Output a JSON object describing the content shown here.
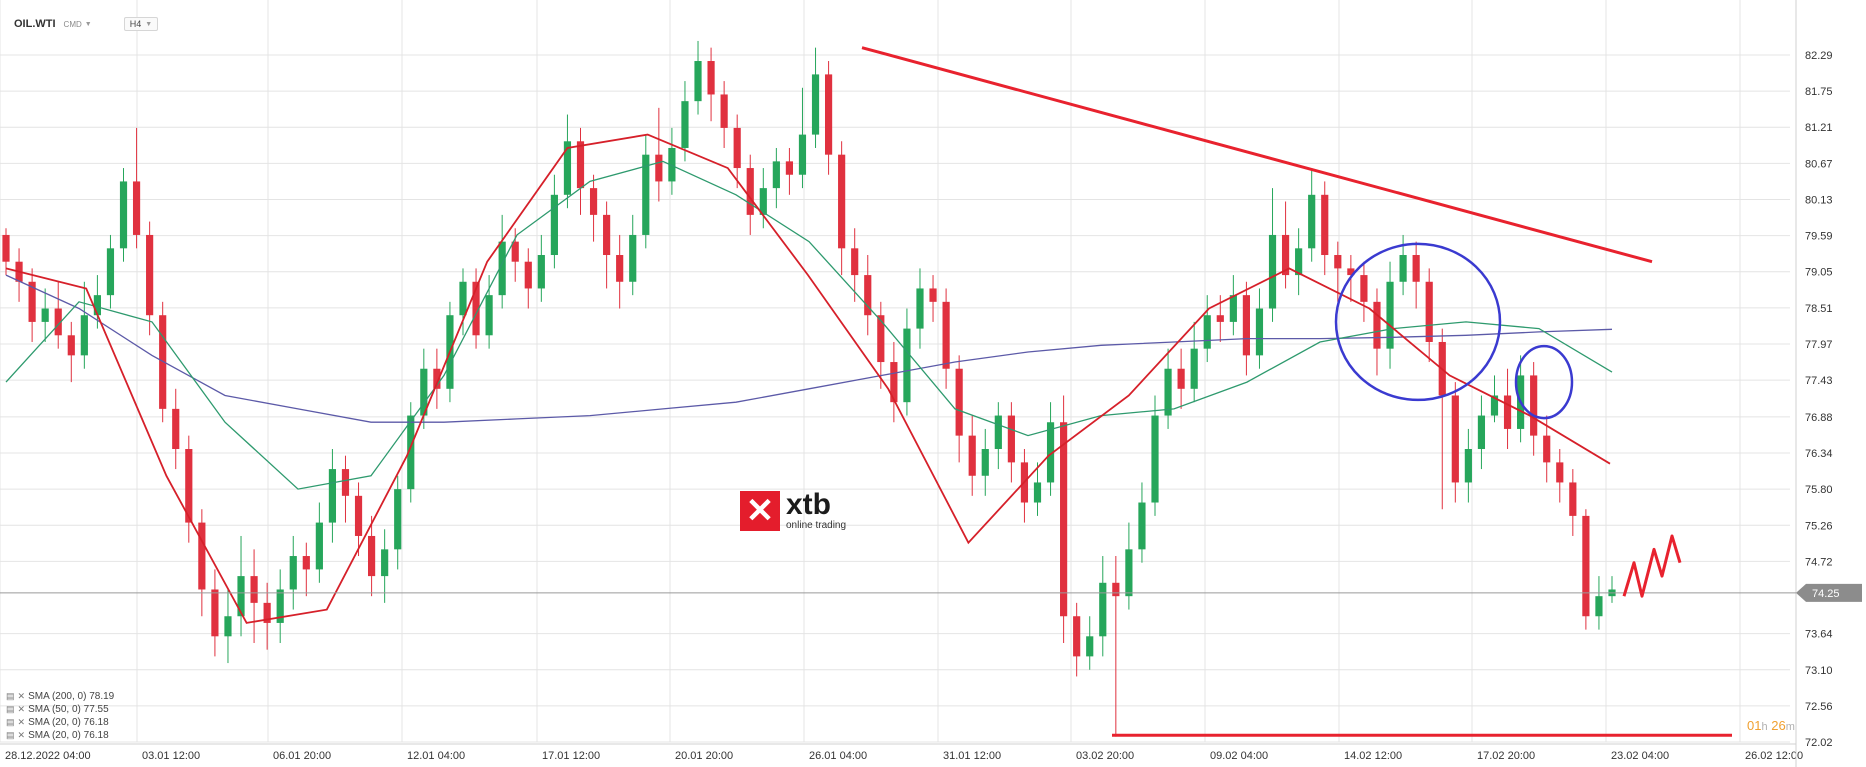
{
  "header": {
    "symbol": "OIL.WTI",
    "instrument_type": "CMD",
    "timeframe": "H4"
  },
  "logo": {
    "name": "xtb",
    "subtitle": "online trading"
  },
  "legend": [
    {
      "label": "SMA (200, 0) 78.19"
    },
    {
      "label": "SMA (50, 0) 77.55"
    },
    {
      "label": "SMA (20, 0) 76.18"
    },
    {
      "label": "SMA (20, 0) 76.18"
    }
  ],
  "countdown": {
    "hours": "01",
    "hours_unit": "h",
    "minutes": "26",
    "minutes_unit": "m"
  },
  "colors": {
    "bull": "#26a65b",
    "bear": "#e0313f",
    "sma200": "#5c5aa8",
    "sma50": "#2e9a6e",
    "sma20": "#d6202a",
    "trendline": "#e8222e",
    "annotation_circle": "#3a3ad0",
    "current_price_bg": "#8c8c8c",
    "grid": "#e4e4e4"
  },
  "chart_data": {
    "type": "candlestick",
    "title": "OIL.WTI",
    "timeframe": "H4",
    "y_ticks": [
      "82.29",
      "81.75",
      "81.21",
      "80.67",
      "80.13",
      "79.59",
      "79.05",
      "78.51",
      "77.97",
      "77.43",
      "76.88",
      "76.34",
      "75.80",
      "75.26",
      "74.72",
      "74.25",
      "73.64",
      "73.10",
      "72.56",
      "72.02"
    ],
    "ylim": [
      72.02,
      82.29
    ],
    "x_ticks": [
      "28.12.2022 04:00",
      "03.01 12:00",
      "06.01 20:00",
      "12.01 04:00",
      "17.01 12:00",
      "20.01 20:00",
      "26.01 04:00",
      "31.01 12:00",
      "03.02 20:00",
      "09.02 04:00",
      "14.02 12:00",
      "17.02 20:00",
      "23.02 04:00",
      "26.02 12:00"
    ],
    "current_price": 74.25,
    "candles": [
      [
        79.6,
        79.2,
        79.7,
        79.0
      ],
      [
        79.2,
        78.9,
        79.4,
        78.6
      ],
      [
        78.9,
        78.3,
        79.1,
        78.0
      ],
      [
        78.3,
        78.5,
        78.8,
        78.0
      ],
      [
        78.5,
        78.1,
        78.9,
        77.9
      ],
      [
        78.1,
        77.8,
        78.3,
        77.4
      ],
      [
        77.8,
        78.4,
        78.9,
        77.6
      ],
      [
        78.4,
        78.7,
        79.0,
        78.2
      ],
      [
        78.7,
        79.4,
        79.6,
        78.5
      ],
      [
        79.4,
        80.4,
        80.6,
        79.2
      ],
      [
        80.4,
        79.6,
        81.2,
        79.4
      ],
      [
        79.6,
        78.4,
        79.8,
        78.1
      ],
      [
        78.4,
        77.0,
        78.6,
        76.8
      ],
      [
        77.0,
        76.4,
        77.3,
        76.1
      ],
      [
        76.4,
        75.3,
        76.6,
        75.0
      ],
      [
        75.3,
        74.3,
        75.5,
        73.9
      ],
      [
        74.3,
        73.6,
        74.6,
        73.3
      ],
      [
        73.6,
        73.9,
        74.3,
        73.2
      ],
      [
        73.9,
        74.5,
        75.1,
        73.6
      ],
      [
        74.5,
        74.1,
        74.9,
        73.5
      ],
      [
        74.1,
        73.8,
        74.4,
        73.4
      ],
      [
        73.8,
        74.3,
        74.6,
        73.5
      ],
      [
        74.3,
        74.8,
        75.1,
        74.0
      ],
      [
        74.8,
        74.6,
        75.0,
        74.2
      ],
      [
        74.6,
        75.3,
        75.6,
        74.4
      ],
      [
        75.3,
        76.1,
        76.4,
        75.0
      ],
      [
        76.1,
        75.7,
        76.3,
        75.3
      ],
      [
        75.7,
        75.1,
        75.9,
        74.8
      ],
      [
        75.1,
        74.5,
        75.4,
        74.2
      ],
      [
        74.5,
        74.9,
        75.2,
        74.1
      ],
      [
        74.9,
        75.8,
        76.0,
        74.6
      ],
      [
        75.8,
        76.9,
        77.1,
        75.6
      ],
      [
        76.9,
        77.6,
        77.9,
        76.7
      ],
      [
        77.6,
        77.3,
        77.9,
        77.0
      ],
      [
        77.3,
        78.4,
        78.6,
        77.1
      ],
      [
        78.4,
        78.9,
        79.1,
        78.1
      ],
      [
        78.9,
        78.1,
        79.1,
        77.9
      ],
      [
        78.1,
        78.7,
        79.0,
        77.9
      ],
      [
        78.7,
        79.5,
        79.9,
        78.5
      ],
      [
        79.5,
        79.2,
        79.7,
        78.9
      ],
      [
        79.2,
        78.8,
        79.4,
        78.5
      ],
      [
        78.8,
        79.3,
        79.6,
        78.6
      ],
      [
        79.3,
        80.2,
        80.5,
        79.1
      ],
      [
        80.2,
        81.0,
        81.4,
        80.0
      ],
      [
        81.0,
        80.3,
        81.2,
        79.9
      ],
      [
        80.3,
        79.9,
        80.5,
        79.5
      ],
      [
        79.9,
        79.3,
        80.1,
        78.8
      ],
      [
        79.3,
        78.9,
        79.6,
        78.5
      ],
      [
        78.9,
        79.6,
        79.9,
        78.7
      ],
      [
        79.6,
        80.8,
        81.1,
        79.4
      ],
      [
        80.8,
        80.4,
        81.5,
        80.1
      ],
      [
        80.4,
        80.9,
        81.2,
        80.2
      ],
      [
        80.9,
        81.6,
        81.9,
        80.7
      ],
      [
        81.6,
        82.2,
        82.5,
        81.4
      ],
      [
        82.2,
        81.7,
        82.4,
        81.3
      ],
      [
        81.7,
        81.2,
        81.9,
        80.9
      ],
      [
        81.2,
        80.6,
        81.4,
        80.3
      ],
      [
        80.6,
        79.9,
        80.8,
        79.6
      ],
      [
        79.9,
        80.3,
        80.6,
        79.7
      ],
      [
        80.3,
        80.7,
        80.9,
        80.0
      ],
      [
        80.7,
        80.5,
        80.9,
        80.2
      ],
      [
        80.5,
        81.1,
        81.8,
        80.3
      ],
      [
        81.1,
        82.0,
        82.4,
        80.9
      ],
      [
        82.0,
        80.8,
        82.2,
        80.5
      ],
      [
        80.8,
        79.4,
        81.0,
        79.0
      ],
      [
        79.4,
        79.0,
        79.7,
        78.6
      ],
      [
        79.0,
        78.4,
        79.3,
        78.1
      ],
      [
        78.4,
        77.7,
        78.6,
        77.3
      ],
      [
        77.7,
        77.1,
        78.0,
        76.8
      ],
      [
        77.1,
        78.2,
        78.5,
        76.9
      ],
      [
        78.2,
        78.8,
        79.1,
        77.9
      ],
      [
        78.8,
        78.6,
        79.0,
        78.3
      ],
      [
        78.6,
        77.6,
        78.8,
        77.3
      ],
      [
        77.6,
        76.6,
        77.8,
        76.2
      ],
      [
        76.6,
        76.0,
        76.9,
        75.7
      ],
      [
        76.0,
        76.4,
        76.7,
        75.7
      ],
      [
        76.4,
        76.9,
        77.1,
        76.1
      ],
      [
        76.9,
        76.2,
        77.1,
        75.9
      ],
      [
        76.2,
        75.6,
        76.4,
        75.3
      ],
      [
        75.6,
        75.9,
        76.2,
        75.4
      ],
      [
        75.9,
        76.8,
        77.1,
        75.7
      ],
      [
        76.8,
        73.9,
        77.2,
        73.5
      ],
      [
        73.9,
        73.3,
        74.1,
        73.0
      ],
      [
        73.3,
        73.6,
        73.9,
        73.1
      ],
      [
        73.6,
        74.4,
        74.8,
        73.3
      ],
      [
        74.4,
        74.2,
        74.8,
        72.1
      ],
      [
        74.2,
        74.9,
        75.3,
        74.0
      ],
      [
        74.9,
        75.6,
        75.9,
        74.7
      ],
      [
        75.6,
        76.9,
        77.2,
        75.4
      ],
      [
        76.9,
        77.6,
        77.9,
        76.7
      ],
      [
        77.6,
        77.3,
        77.9,
        77.0
      ],
      [
        77.3,
        77.9,
        78.3,
        77.1
      ],
      [
        77.9,
        78.4,
        78.7,
        77.7
      ],
      [
        78.4,
        78.3,
        78.7,
        78.0
      ],
      [
        78.3,
        78.7,
        79.0,
        78.1
      ],
      [
        78.7,
        77.8,
        78.9,
        77.5
      ],
      [
        77.8,
        78.5,
        78.8,
        77.6
      ],
      [
        78.5,
        79.6,
        80.3,
        78.3
      ],
      [
        79.6,
        79.0,
        80.1,
        78.8
      ],
      [
        79.0,
        79.4,
        79.7,
        78.7
      ],
      [
        79.4,
        80.2,
        80.6,
        79.2
      ],
      [
        80.2,
        79.3,
        80.4,
        79.0
      ],
      [
        79.3,
        79.1,
        79.5,
        78.6
      ],
      [
        79.1,
        79.0,
        79.3,
        78.6
      ],
      [
        79.0,
        78.6,
        79.2,
        78.3
      ],
      [
        78.6,
        77.9,
        78.8,
        77.5
      ],
      [
        77.9,
        78.9,
        79.2,
        77.6
      ],
      [
        78.9,
        79.3,
        79.6,
        78.7
      ],
      [
        79.3,
        78.9,
        79.5,
        78.5
      ],
      [
        78.9,
        78.0,
        79.1,
        77.7
      ],
      [
        78.0,
        77.2,
        78.2,
        75.5
      ],
      [
        77.2,
        75.9,
        77.4,
        75.6
      ],
      [
        75.9,
        76.4,
        76.7,
        75.6
      ],
      [
        76.4,
        76.9,
        77.2,
        76.1
      ],
      [
        76.9,
        77.2,
        77.5,
        76.8
      ],
      [
        77.2,
        76.7,
        77.6,
        76.4
      ],
      [
        76.7,
        77.5,
        77.8,
        76.5
      ],
      [
        77.5,
        76.6,
        77.7,
        76.3
      ],
      [
        76.6,
        76.2,
        76.9,
        75.9
      ],
      [
        76.2,
        75.9,
        76.4,
        75.6
      ],
      [
        75.9,
        75.4,
        76.1,
        75.1
      ],
      [
        75.4,
        73.9,
        75.5,
        73.7
      ],
      [
        73.9,
        74.2,
        74.5,
        73.7
      ],
      [
        74.2,
        74.3,
        74.5,
        74.1
      ]
    ],
    "series": [
      {
        "name": "SMA (200, 0) 78.19",
        "values": [
          79.0,
          78.5,
          77.8,
          77.2,
          77.0,
          76.8,
          76.8,
          76.85,
          76.9,
          77.0,
          77.1,
          77.3,
          77.5,
          77.7,
          77.85,
          77.95,
          78.0,
          78.05,
          78.05,
          78.07,
          78.1,
          78.15,
          78.19
        ]
      },
      {
        "name": "SMA (50, 0) 77.55",
        "values": [
          77.4,
          78.6,
          78.3,
          76.8,
          75.8,
          76.0,
          77.5,
          79.6,
          80.4,
          80.7,
          80.2,
          79.5,
          78.3,
          77.0,
          76.6,
          76.9,
          77.0,
          77.4,
          78.0,
          78.2,
          78.3,
          78.2,
          77.55
        ]
      },
      {
        "name": "SMA (20, 0) 76.18",
        "values": [
          79.1,
          78.8,
          76.0,
          73.8,
          74.0,
          76.3,
          79.2,
          80.9,
          81.1,
          80.6,
          79.0,
          77.3,
          75.0,
          76.3,
          77.2,
          78.5,
          79.1,
          78.5,
          77.5,
          76.9,
          76.18
        ]
      }
    ],
    "annotations": {
      "trendline": {
        "from": [
          "26.01 04:00",
          82.4
        ],
        "to": [
          "23.02",
          79.2
        ]
      },
      "support_line": 72.12,
      "projection": "zigzag"
    }
  }
}
